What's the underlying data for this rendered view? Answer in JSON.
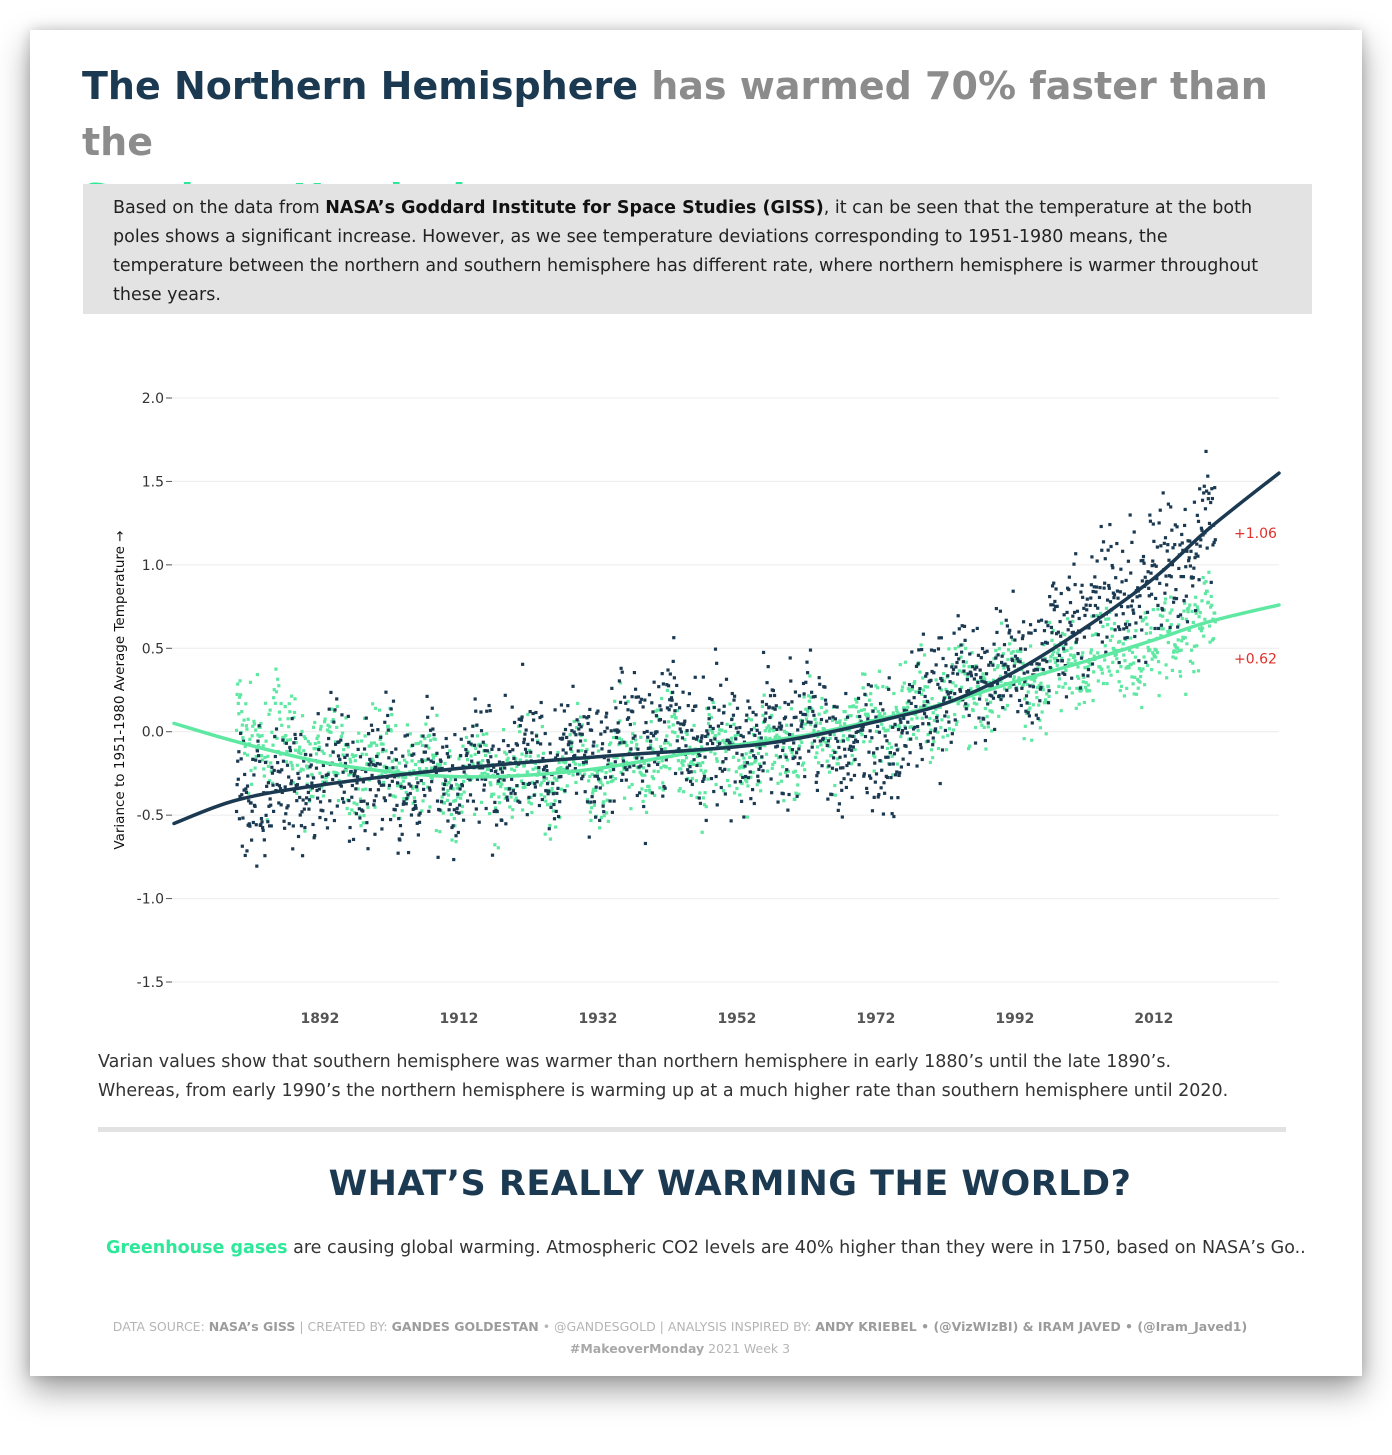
{
  "title": {
    "north": "The Northern Hemisphere",
    "mid": " has warmed 70% faster than the",
    "south": "Southern Hemisphere"
  },
  "intro": {
    "before": "Based on the data from ",
    "source": "NASA’s Goddard Institute for Space Studies (GISS)",
    "after": ", it can be seen that the temperature at the both poles shows a significant increase. However, as we see temperature deviations corresponding to 1951-1980 means, the temperature between the northern and southern hemisphere has different rate, where northern hemisphere is warmer throughout these years."
  },
  "caption": {
    "line1": "Varian values show that southern hemisphere was warmer than northern hemisphere in early 1880’s until the late 1890’s.",
    "line2": "Whereas, from early 1990’s the northern hemisphere is warming up at a much higher rate than southern hemisphere until 2020."
  },
  "section": {
    "title": "WHAT’S REALLY WARMING THE WORLD?",
    "highlight": "Greenhouse gases",
    "text": " are causing global warming. Atmospheric CO2 levels are 40% higher than they were in 1750, based on NASA’s Go.."
  },
  "footer": {
    "l1": "DATA SOURCE: ",
    "src": "NASA’s GISS",
    "l2": "  |  CREATED BY: ",
    "creator": "GANDES GOLDESTAN",
    "l3": " • @GANDESGOLD  |  ANALYSIS INSPIRED BY: ",
    "inspired": "ANDY KRIEBEL • (@VizWIzBI) & IRAM JAVED • (@Iram_Javed1)",
    "hashtag": "#MakeoverMonday",
    "week": " 2021 Week 3"
  },
  "chart_data": {
    "type": "scatter",
    "title": "",
    "xlabel": "",
    "ylabel": "Variance to 1951-1980 Average Temperature →",
    "x_ticks": [
      1892,
      1912,
      1932,
      1952,
      1972,
      1992,
      2012
    ],
    "y_ticks": [
      2.0,
      1.5,
      1.0,
      0.5,
      0.0,
      -0.5,
      -1.0,
      -1.5
    ],
    "y_tick_labels": [
      "2.0",
      "1.5",
      "1.0",
      "0.5",
      "0.0",
      "-0.5",
      "-1.0",
      "-1.5"
    ],
    "xlim": [
      1871,
      2030
    ],
    "ylim": [
      -1.5,
      2.0
    ],
    "grid": "horizontal",
    "colors": {
      "north": "#1b3a52",
      "south": "#5ee8a2",
      "label": "#e0302a"
    },
    "series": [
      {
        "key": "north",
        "trend": [
          [
            1871,
            -0.55
          ],
          [
            1880,
            -0.41
          ],
          [
            1892,
            -0.32
          ],
          [
            1912,
            -0.22
          ],
          [
            1932,
            -0.15
          ],
          [
            1952,
            -0.09
          ],
          [
            1962,
            -0.03
          ],
          [
            1972,
            0.06
          ],
          [
            1982,
            0.17
          ],
          [
            1992,
            0.36
          ],
          [
            2002,
            0.62
          ],
          [
            2012,
            0.92
          ],
          [
            2020,
            1.22
          ],
          [
            2030,
            1.55
          ]
        ],
        "scatter_anchors": [
          [
            1880,
            -0.38
          ],
          [
            1892,
            -0.3
          ],
          [
            1902,
            -0.28
          ],
          [
            1912,
            -0.24
          ],
          [
            1922,
            -0.2
          ],
          [
            1932,
            -0.12
          ],
          [
            1942,
            0.02
          ],
          [
            1952,
            -0.08
          ],
          [
            1962,
            0.05
          ],
          [
            1972,
            -0.12
          ],
          [
            1982,
            0.25
          ],
          [
            1992,
            0.38
          ],
          [
            2002,
            0.72
          ],
          [
            2012,
            0.9
          ],
          [
            2020,
            1.2
          ]
        ],
        "end_label": "+1.06"
      },
      {
        "key": "south",
        "trend": [
          [
            1871,
            0.05
          ],
          [
            1880,
            -0.06
          ],
          [
            1892,
            -0.18
          ],
          [
            1902,
            -0.24
          ],
          [
            1912,
            -0.27
          ],
          [
            1922,
            -0.26
          ],
          [
            1932,
            -0.22
          ],
          [
            1942,
            -0.15
          ],
          [
            1952,
            -0.08
          ],
          [
            1962,
            -0.02
          ],
          [
            1972,
            0.07
          ],
          [
            1982,
            0.17
          ],
          [
            1992,
            0.3
          ],
          [
            2002,
            0.42
          ],
          [
            2012,
            0.55
          ],
          [
            2020,
            0.66
          ],
          [
            2030,
            0.76
          ]
        ],
        "scatter_anchors": [
          [
            1880,
            0.02
          ],
          [
            1892,
            -0.15
          ],
          [
            1902,
            -0.2
          ],
          [
            1912,
            -0.3
          ],
          [
            1922,
            -0.26
          ],
          [
            1932,
            -0.24
          ],
          [
            1942,
            -0.1
          ],
          [
            1952,
            -0.16
          ],
          [
            1962,
            -0.05
          ],
          [
            1972,
            0.05
          ],
          [
            1982,
            0.2
          ],
          [
            1992,
            0.28
          ],
          [
            2002,
            0.42
          ],
          [
            2012,
            0.5
          ],
          [
            2020,
            0.7
          ]
        ],
        "end_label": "+0.62"
      }
    ]
  }
}
